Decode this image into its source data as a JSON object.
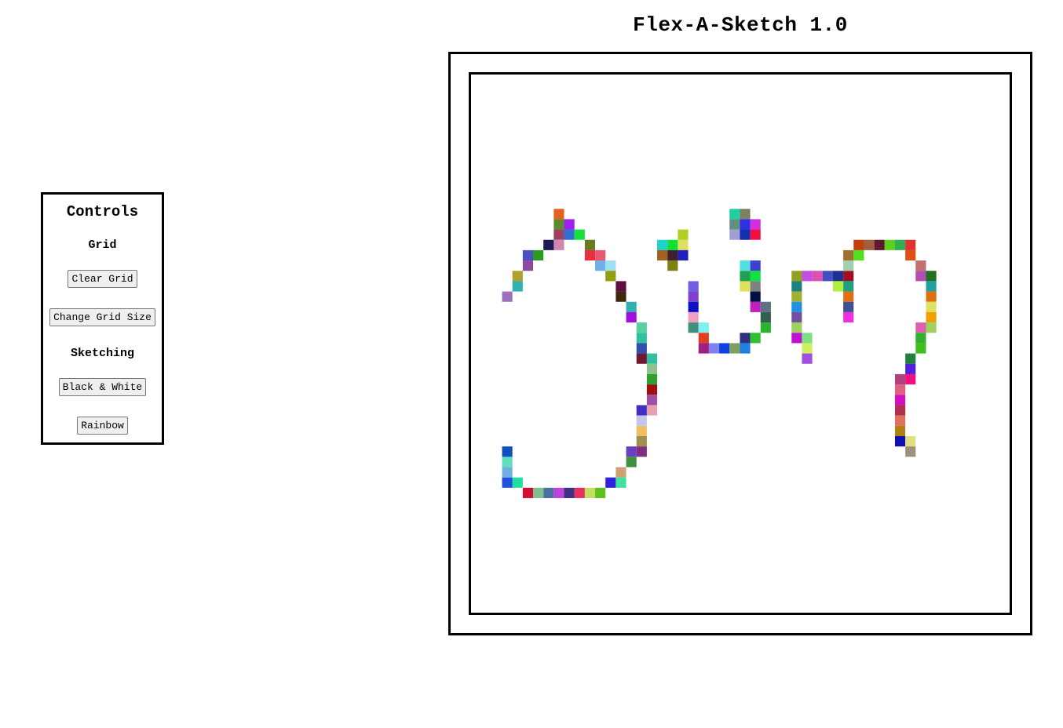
{
  "app": {
    "title": "Flex-A-Sketch 1.0"
  },
  "controls": {
    "heading": "Controls",
    "grid_section": "Grid",
    "clear_grid_label": "Clear Grid",
    "change_grid_size_label": "Change Grid Size",
    "sketching_section": "Sketching",
    "black_white_label": "Black & White",
    "rainbow_label": "Rainbow"
  },
  "sketch": {
    "mode": "rainbow",
    "cells": [
      [
        8,
        13,
        "#e8601f"
      ],
      [
        8,
        14,
        "#5e8a2b"
      ],
      [
        9,
        14,
        "#a020f0"
      ],
      [
        8,
        15,
        "#a04060"
      ],
      [
        9,
        15,
        "#2f6fd0"
      ],
      [
        10,
        15,
        "#18e040"
      ],
      [
        8,
        16,
        "#d088b0"
      ],
      [
        7,
        16,
        "#201850"
      ],
      [
        11,
        16,
        "#6a7a20"
      ],
      [
        6,
        17,
        "#2a9a20"
      ],
      [
        5,
        17,
        "#4a50c0"
      ],
      [
        11,
        17,
        "#e83040"
      ],
      [
        12,
        17,
        "#e85870"
      ],
      [
        5,
        18,
        "#8a4aa0"
      ],
      [
        12,
        18,
        "#70b0e8"
      ],
      [
        13,
        18,
        "#a0e0f0"
      ],
      [
        4,
        19,
        "#b0a030"
      ],
      [
        13,
        19,
        "#90a010"
      ],
      [
        4,
        20,
        "#30b0b0"
      ],
      [
        14,
        20,
        "#601040"
      ],
      [
        3,
        21,
        "#a070c0"
      ],
      [
        14,
        21,
        "#402810"
      ],
      [
        15,
        22,
        "#30b0b0"
      ],
      [
        15,
        23,
        "#a010e0"
      ],
      [
        16,
        24,
        "#58d0a0"
      ],
      [
        16,
        25,
        "#30c0a0"
      ],
      [
        16,
        26,
        "#3050b0"
      ],
      [
        16,
        27,
        "#701830"
      ],
      [
        17,
        27,
        "#30c0a0"
      ],
      [
        17,
        28,
        "#90c090"
      ],
      [
        17,
        29,
        "#30a030"
      ],
      [
        17,
        30,
        "#a01010"
      ],
      [
        17,
        31,
        "#a050a0"
      ],
      [
        16,
        32,
        "#4030c0"
      ],
      [
        17,
        32,
        "#e8a0b0"
      ],
      [
        16,
        33,
        "#c0c8f0"
      ],
      [
        16,
        34,
        "#f0c060"
      ],
      [
        16,
        35,
        "#a09050"
      ],
      [
        15,
        36,
        "#6a40c0"
      ],
      [
        16,
        36,
        "#803080"
      ],
      [
        15,
        37,
        "#409040"
      ],
      [
        14,
        38,
        "#d0a070"
      ],
      [
        13,
        39,
        "#3020e0"
      ],
      [
        14,
        39,
        "#40e0a0"
      ],
      [
        12,
        40,
        "#60c020"
      ],
      [
        11,
        40,
        "#c0e060"
      ],
      [
        10,
        40,
        "#e83060"
      ],
      [
        9,
        40,
        "#403080"
      ],
      [
        8,
        40,
        "#c040e0"
      ],
      [
        7,
        40,
        "#4a70a0"
      ],
      [
        6,
        40,
        "#80c090"
      ],
      [
        5,
        40,
        "#d01030"
      ],
      [
        4,
        39,
        "#20e0a0"
      ],
      [
        3,
        39,
        "#2050e0"
      ],
      [
        3,
        38,
        "#70b0e0"
      ],
      [
        3,
        37,
        "#60e0c0"
      ],
      [
        3,
        36,
        "#1050c0"
      ],
      [
        18,
        16,
        "#20d0d0"
      ],
      [
        19,
        16,
        "#10e030"
      ],
      [
        20,
        16,
        "#e0e060"
      ],
      [
        20,
        15,
        "#b0d020"
      ],
      [
        18,
        17,
        "#a06020"
      ],
      [
        19,
        17,
        "#402030"
      ],
      [
        20,
        17,
        "#2020c0"
      ],
      [
        19,
        18,
        "#808010"
      ],
      [
        21,
        20,
        "#7060e0"
      ],
      [
        21,
        21,
        "#8040d0"
      ],
      [
        21,
        22,
        "#1010c0"
      ],
      [
        21,
        23,
        "#f0a0c0"
      ],
      [
        21,
        24,
        "#409080"
      ],
      [
        22,
        24,
        "#80f0f0"
      ],
      [
        22,
        25,
        "#e04020"
      ],
      [
        22,
        26,
        "#a02080"
      ],
      [
        23,
        26,
        "#8080f0"
      ],
      [
        24,
        26,
        "#1040e0"
      ],
      [
        25,
        26,
        "#80a060"
      ],
      [
        26,
        26,
        "#2080e0"
      ],
      [
        26,
        25,
        "#303080"
      ],
      [
        27,
        25,
        "#30c030"
      ],
      [
        28,
        24,
        "#30b030"
      ],
      [
        28,
        23,
        "#306050"
      ],
      [
        28,
        22,
        "#607080"
      ],
      [
        27,
        22,
        "#c020c0"
      ],
      [
        27,
        21,
        "#001040"
      ],
      [
        27,
        20,
        "#808080"
      ],
      [
        26,
        20,
        "#e0e060"
      ],
      [
        27,
        19,
        "#10e040"
      ],
      [
        26,
        19,
        "#20a050"
      ],
      [
        26,
        18,
        "#50e0e0"
      ],
      [
        27,
        18,
        "#4040d0"
      ],
      [
        25,
        13,
        "#20d0a0"
      ],
      [
        26,
        13,
        "#808060"
      ],
      [
        25,
        14,
        "#609080"
      ],
      [
        26,
        14,
        "#3030e0"
      ],
      [
        27,
        14,
        "#d030e0"
      ],
      [
        25,
        15,
        "#a0a0d0"
      ],
      [
        26,
        15,
        "#1030b0"
      ],
      [
        27,
        15,
        "#f01040"
      ],
      [
        31,
        19,
        "#90a020"
      ],
      [
        32,
        19,
        "#c050e0"
      ],
      [
        33,
        19,
        "#e050b0"
      ],
      [
        34,
        19,
        "#4050c0"
      ],
      [
        35,
        19,
        "#203090"
      ],
      [
        36,
        19,
        "#a01020"
      ],
      [
        31,
        20,
        "#208080"
      ],
      [
        31,
        21,
        "#a0b030"
      ],
      [
        31,
        22,
        "#2090e0"
      ],
      [
        31,
        23,
        "#7050a0"
      ],
      [
        31,
        24,
        "#a0d060"
      ],
      [
        31,
        25,
        "#c010d0"
      ],
      [
        32,
        25,
        "#80e080"
      ],
      [
        32,
        26,
        "#d0f060"
      ],
      [
        32,
        27,
        "#a050e0"
      ],
      [
        35,
        20,
        "#b0f040"
      ],
      [
        36,
        20,
        "#20a080"
      ],
      [
        36,
        21,
        "#e07010"
      ],
      [
        36,
        22,
        "#405090"
      ],
      [
        36,
        23,
        "#f030e0"
      ],
      [
        36,
        17,
        "#a07030"
      ],
      [
        37,
        17,
        "#50e020"
      ],
      [
        36,
        18,
        "#a0d0b0"
      ],
      [
        37,
        16,
        "#c04010"
      ],
      [
        38,
        16,
        "#a06040"
      ],
      [
        39,
        16,
        "#601830"
      ],
      [
        40,
        16,
        "#60d020"
      ],
      [
        41,
        16,
        "#30b050"
      ],
      [
        42,
        16,
        "#e03030"
      ],
      [
        42,
        17,
        "#e05010"
      ],
      [
        43,
        18,
        "#c07070"
      ],
      [
        43,
        19,
        "#b050b0"
      ],
      [
        44,
        19,
        "#207020"
      ],
      [
        44,
        20,
        "#20a0a0"
      ],
      [
        44,
        21,
        "#e07010"
      ],
      [
        44,
        22,
        "#e0e060"
      ],
      [
        44,
        23,
        "#f0a000"
      ],
      [
        43,
        24,
        "#e060b0"
      ],
      [
        44,
        24,
        "#a0d060"
      ],
      [
        43,
        25,
        "#30b030"
      ],
      [
        43,
        26,
        "#40c020"
      ],
      [
        42,
        27,
        "#208040"
      ],
      [
        42,
        28,
        "#5020e0"
      ],
      [
        41,
        29,
        "#b04080"
      ],
      [
        42,
        29,
        "#f01080"
      ],
      [
        41,
        30,
        "#e06080"
      ],
      [
        41,
        31,
        "#d010c0"
      ],
      [
        41,
        32,
        "#b03050"
      ],
      [
        41,
        33,
        "#e07060"
      ],
      [
        41,
        34,
        "#b08010"
      ],
      [
        41,
        35,
        "#1010b0"
      ],
      [
        42,
        35,
        "#e0e080"
      ],
      [
        42,
        36,
        "#a09080"
      ]
    ]
  }
}
